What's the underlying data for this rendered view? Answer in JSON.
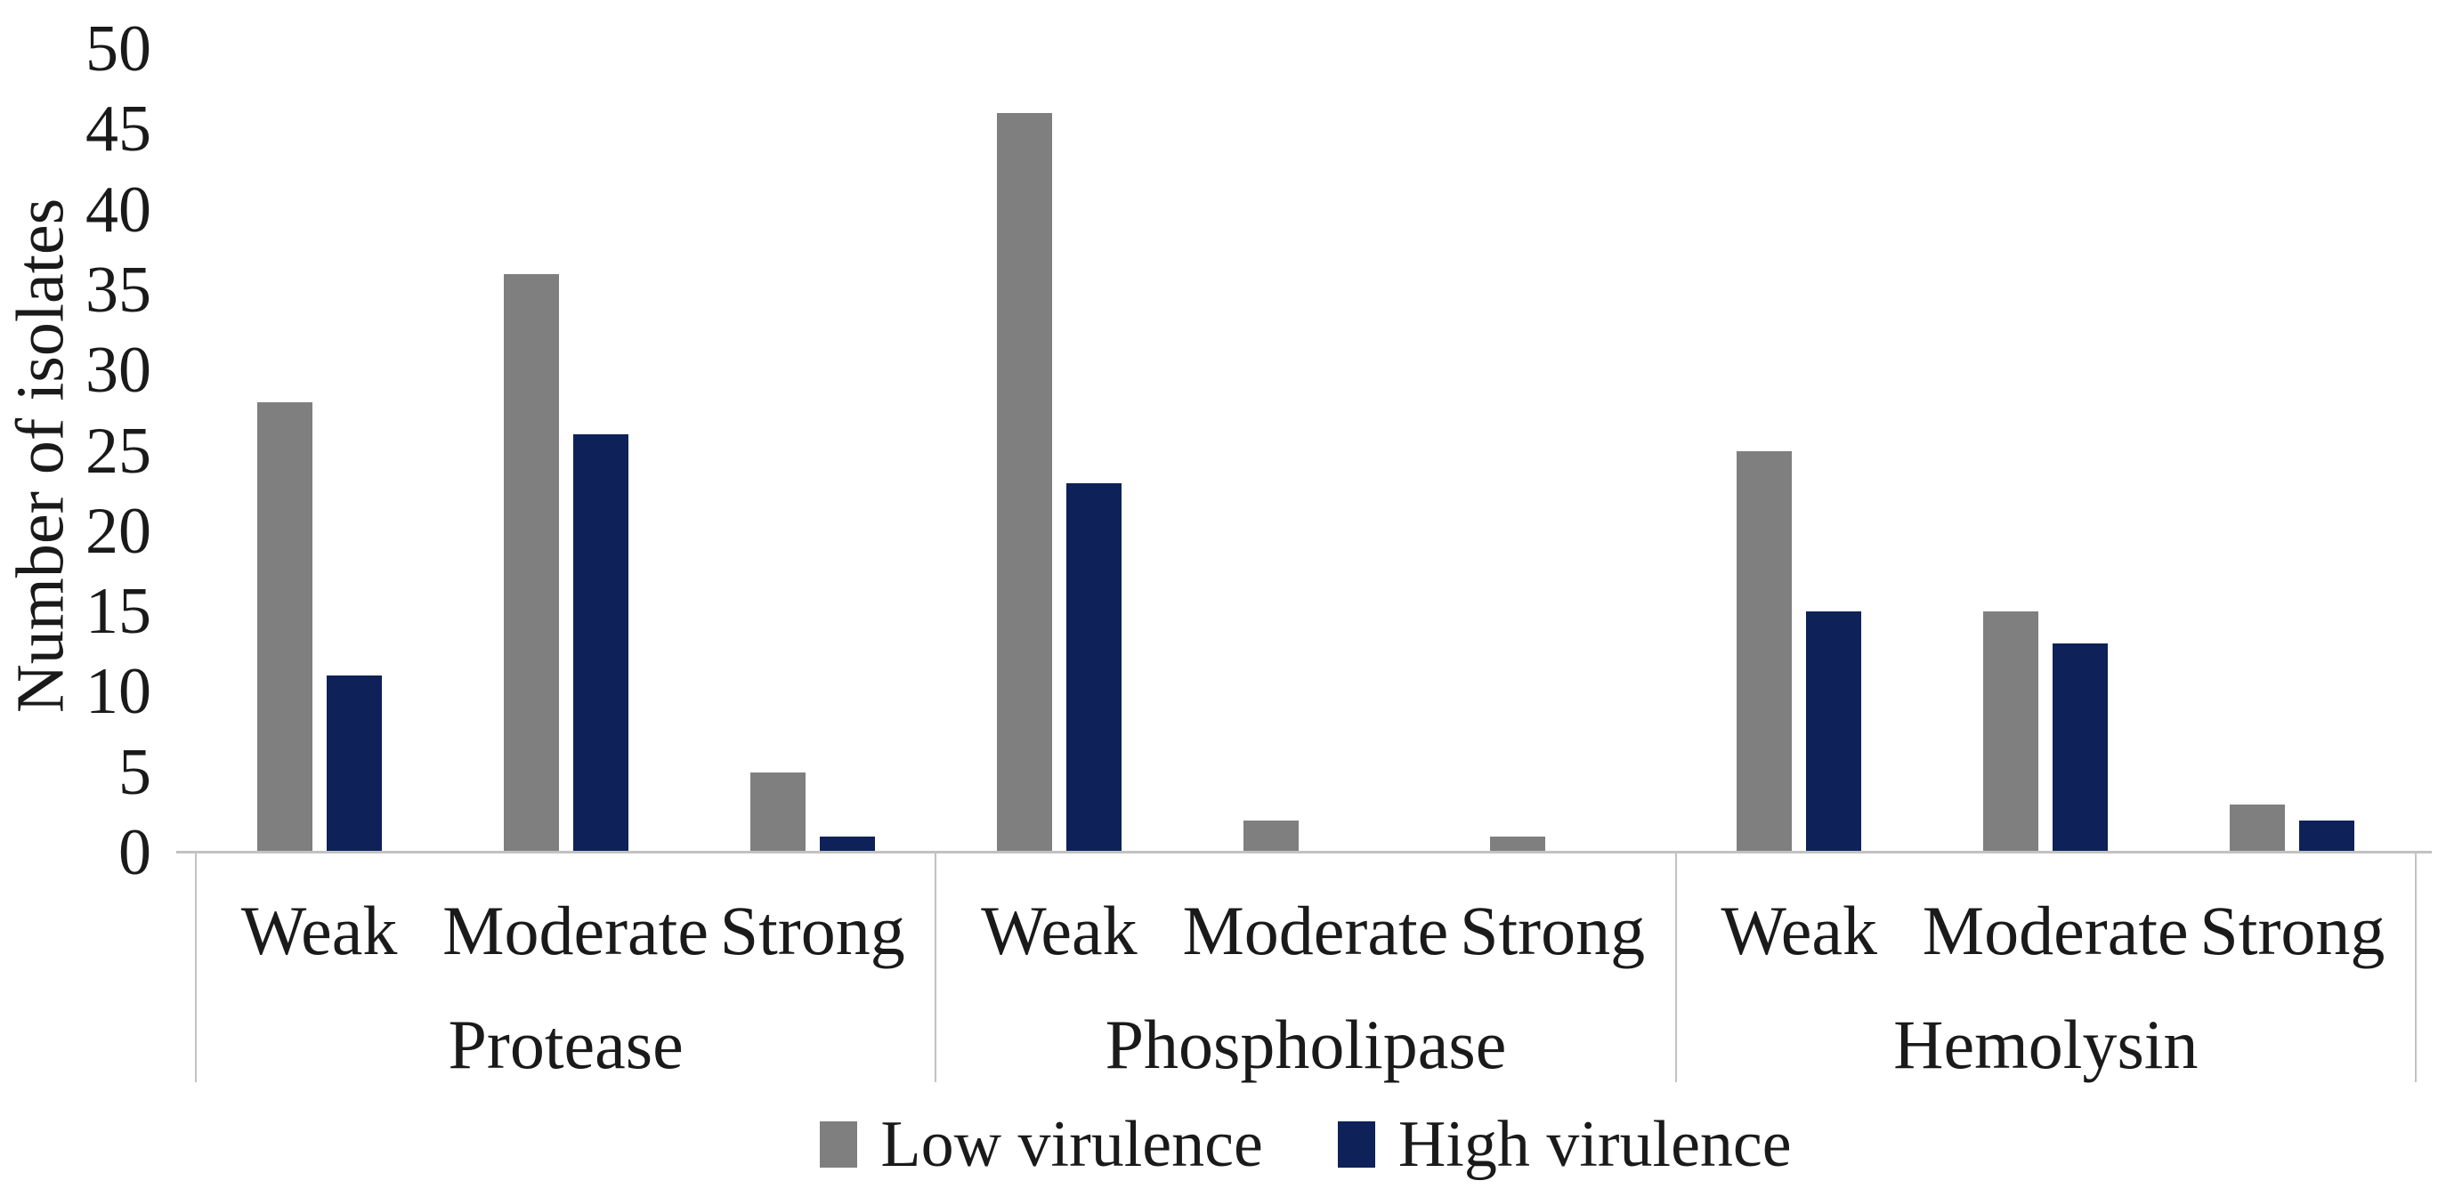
{
  "chart_data": {
    "type": "bar",
    "title": "",
    "xlabel": "",
    "ylabel": "Number of isolates",
    "ylim": [
      0,
      50
    ],
    "ytick_step": 5,
    "yticks": [
      0,
      5,
      10,
      15,
      20,
      25,
      30,
      35,
      40,
      45,
      50
    ],
    "grid": false,
    "legend_position": "bottom",
    "groups": [
      "Protease",
      "Phospholipase",
      "Hemolysin"
    ],
    "categories": [
      "Weak",
      "Moderate",
      "Strong"
    ],
    "series": [
      {
        "name": "Low virulence",
        "color": "#7F7F7F",
        "values": {
          "Protease": [
            28,
            36,
            5
          ],
          "Phospholipase": [
            46,
            2,
            1
          ],
          "Hemolysin": [
            25,
            15,
            3
          ]
        }
      },
      {
        "name": "High virulence",
        "color": "#0E2158",
        "values": {
          "Protease": [
            11,
            26,
            1
          ],
          "Phospholipase": [
            23,
            0,
            0
          ],
          "Hemolysin": [
            15,
            13,
            2
          ]
        }
      }
    ]
  },
  "colors": {
    "axis_line": "#C2C2C2",
    "text": "#1A1A1A",
    "background": "#FFFFFF"
  }
}
